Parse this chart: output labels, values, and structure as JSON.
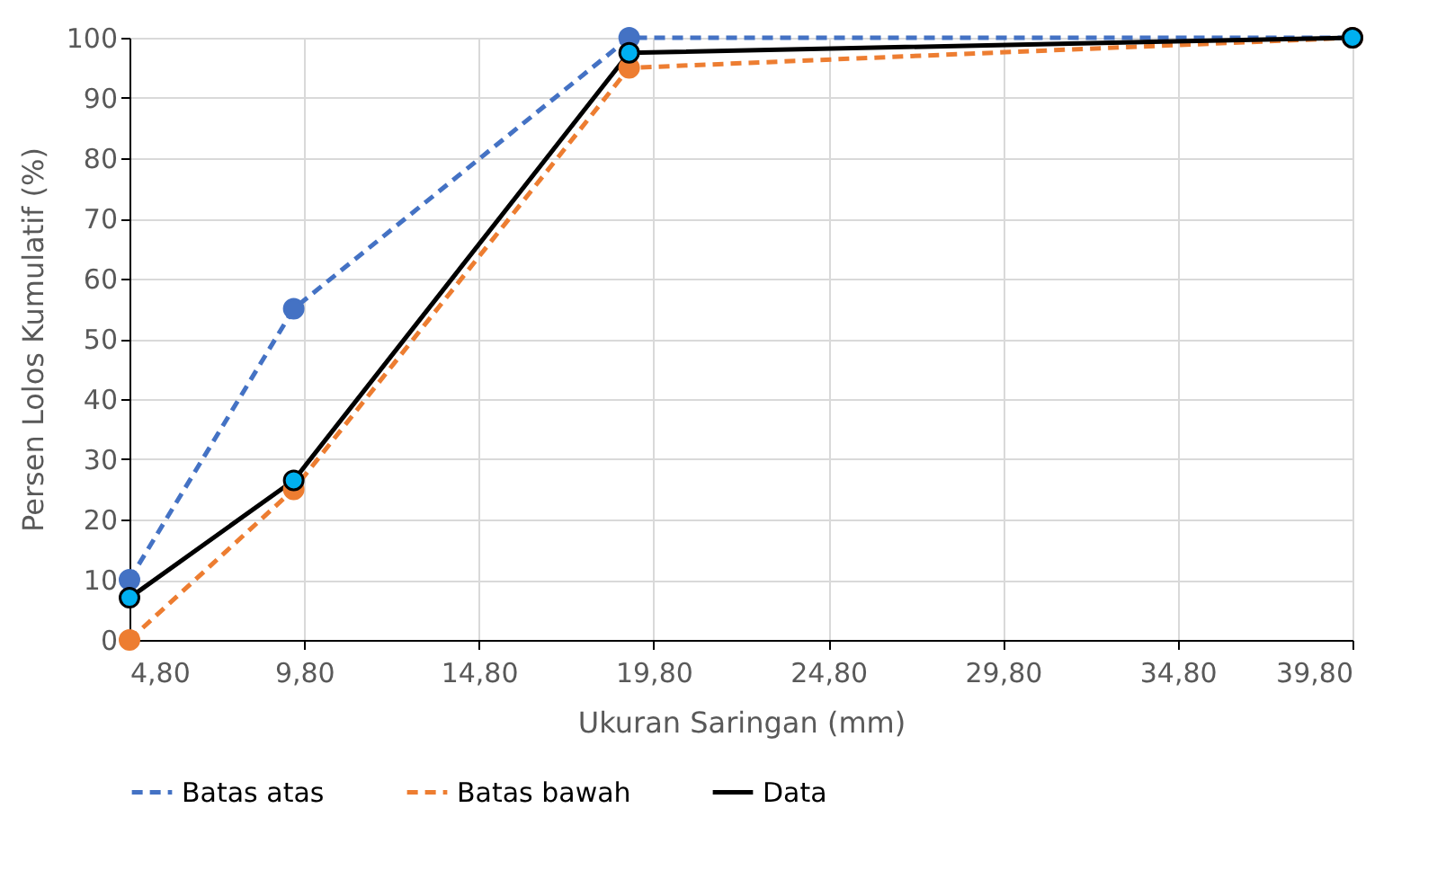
{
  "chart_data": {
    "type": "line",
    "xlabel": "Ukuran Saringan (mm)",
    "ylabel": "Persen Lolos Kumulatif (%)",
    "xlim": [
      4.8,
      39.8
    ],
    "xticks": [
      {
        "value": 4.8,
        "label": "4,80"
      },
      {
        "value": 9.8,
        "label": "9,80"
      },
      {
        "value": 14.8,
        "label": "14,80"
      },
      {
        "value": 19.8,
        "label": "19,80"
      },
      {
        "value": 24.8,
        "label": "24,80"
      },
      {
        "value": 29.8,
        "label": "29,80"
      },
      {
        "value": 34.8,
        "label": "34,80"
      },
      {
        "value": 39.8,
        "label": "39,80"
      }
    ],
    "ylim": [
      0,
      100
    ],
    "yticks": [
      0,
      10,
      20,
      30,
      40,
      50,
      60,
      70,
      80,
      90,
      100
    ],
    "grid": true,
    "legend": "bottom",
    "marker": "circle",
    "x": [
      4.8,
      9.5,
      19.1,
      39.8
    ],
    "series": [
      {
        "name": "Batas atas",
        "color": "#4472c4",
        "line_style": "dashed",
        "values": [
          10,
          55,
          100,
          100
        ]
      },
      {
        "name": "Batas bawah",
        "color": "#ed7d31",
        "line_style": "dashed",
        "values": [
          0,
          25,
          95,
          100
        ]
      },
      {
        "name": "Data",
        "color": "#000000",
        "line_style": "solid",
        "colors": [
          "#00b0f0",
          "#00b0f0",
          "#00b0f0",
          "#00b0f0"
        ],
        "values": [
          7,
          26.5,
          97.5,
          100
        ]
      }
    ]
  }
}
